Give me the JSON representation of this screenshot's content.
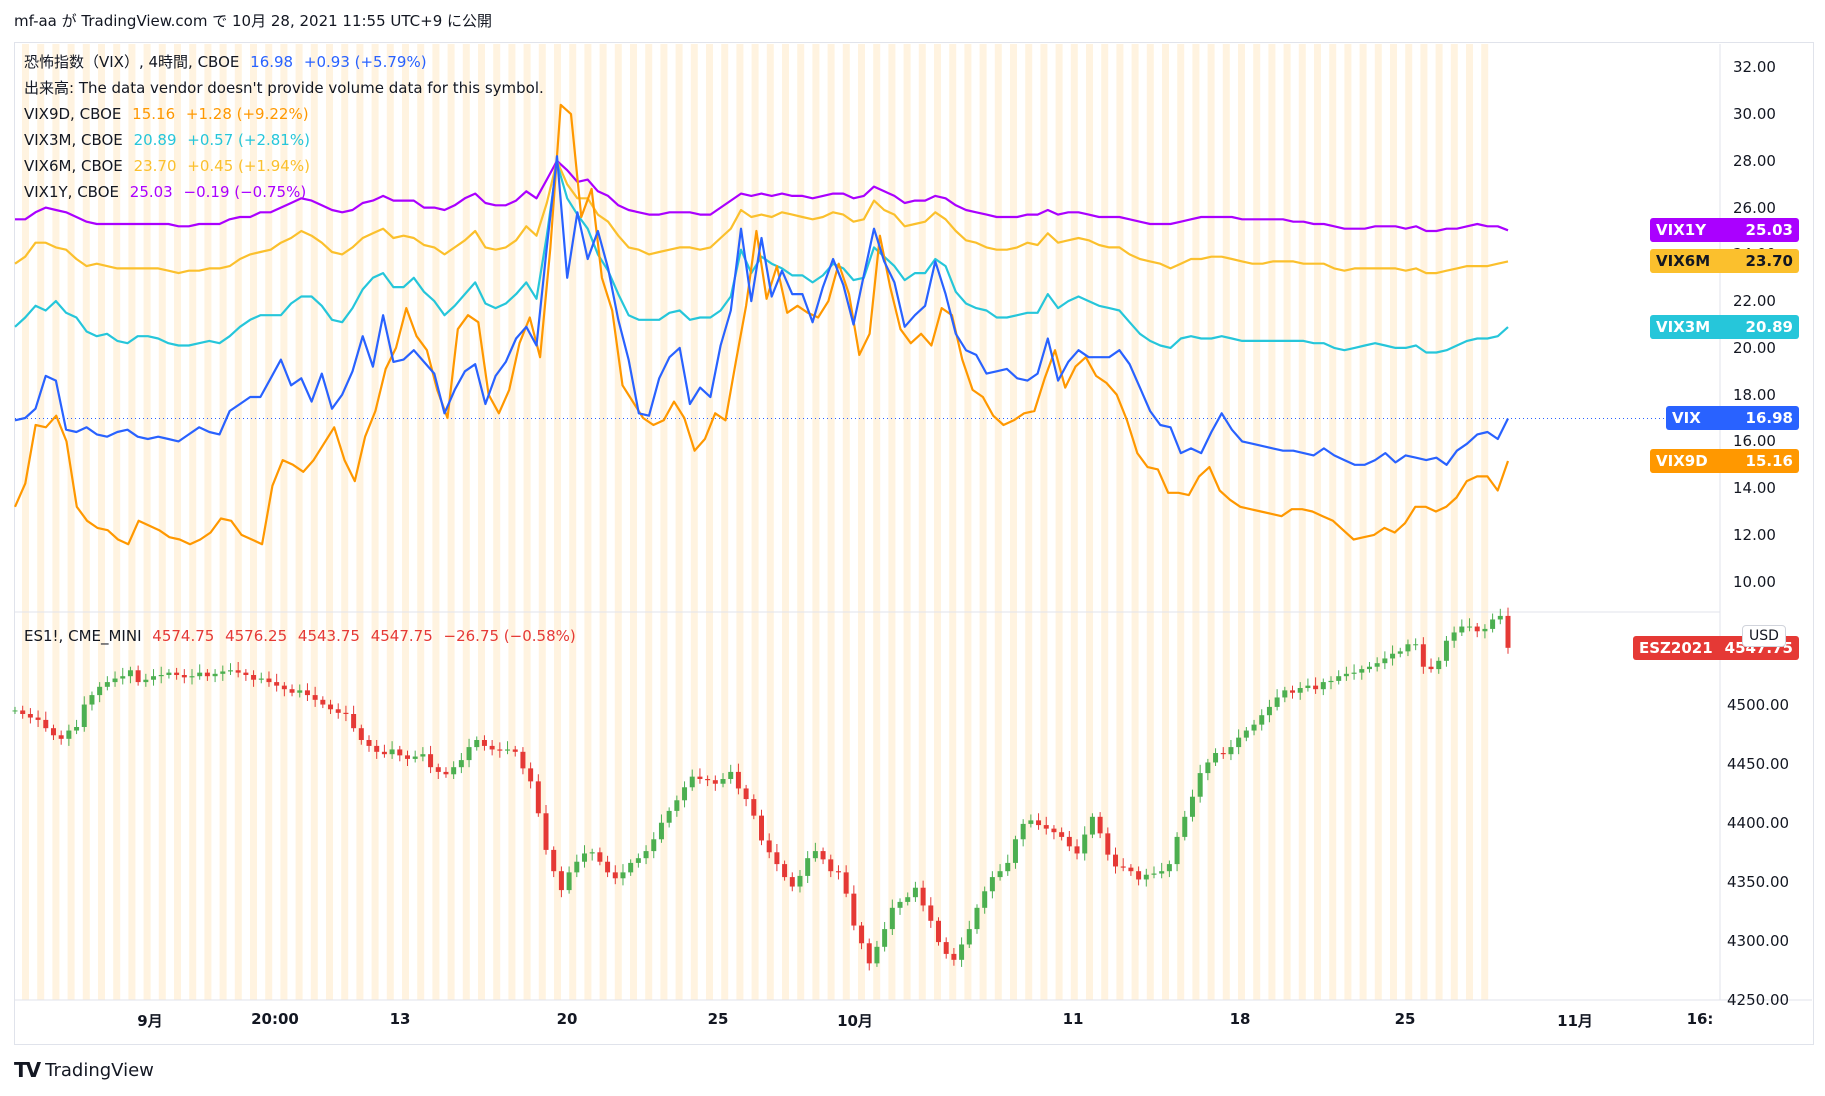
{
  "header": {
    "text": "mf-aa が TradingView.com で 10月 28, 2021 11:55 UTC+9 に公開"
  },
  "colors": {
    "vix": "#2962ff",
    "vix9d": "#ff9800",
    "vix3m": "#26c6da",
    "vix6m": "#fbc02d",
    "vix1y": "#aa00ff",
    "es1": "#e53935",
    "up": "#4caf50",
    "down": "#e53935",
    "session_shade": "#fff3e0",
    "grid": "#f0f3fa",
    "dotted": "#2962ff"
  },
  "legend_top": [
    {
      "id": "vix",
      "name": "恐怖指数（VIX）, 4時間, CBOE",
      "value": "16.98",
      "change": "+0.93 (+5.79%)"
    },
    {
      "id": "vol",
      "name": "出来高: The data vendor doesn't provide volume data for this symbol.",
      "value": "",
      "change": ""
    },
    {
      "id": "vix9d",
      "name": "VIX9D, CBOE",
      "value": "15.16",
      "change": "+1.28 (+9.22%)"
    },
    {
      "id": "vix3m",
      "name": "VIX3M, CBOE",
      "value": "20.89",
      "change": "+0.57 (+2.81%)"
    },
    {
      "id": "vix6m",
      "name": "VIX6M, CBOE",
      "value": "23.70",
      "change": "+0.45 (+1.94%)"
    },
    {
      "id": "vix1y",
      "name": "VIX1Y, CBOE",
      "value": "25.03",
      "change": "−0.19 (−0.75%)"
    }
  ],
  "legend_bottom": {
    "name": "ES1!, CME_MINI",
    "o": "4574.75",
    "h": "4576.25",
    "l": "4543.75",
    "c": "4547.75",
    "change": "−26.75 (−0.58%)"
  },
  "price_tags": [
    {
      "label": "VIX1Y",
      "value": "25.03",
      "series": "vix1y"
    },
    {
      "label": "VIX6M",
      "value": "23.70",
      "series": "vix6m"
    },
    {
      "label": "VIX3M",
      "value": "20.89",
      "series": "vix3m"
    },
    {
      "label": "VIX",
      "value": "16.98",
      "series": "vix"
    },
    {
      "label": "VIX9D",
      "value": "15.16",
      "series": "vix9d"
    },
    {
      "label": "ESZ2021",
      "value": "4547.75",
      "series": "es1"
    }
  ],
  "y_axis_top": [
    "32.00",
    "30.00",
    "28.00",
    "26.00",
    "24.00",
    "22.00",
    "20.00",
    "18.00",
    "16.00",
    "14.00",
    "12.00",
    "10.00"
  ],
  "y_axis_bottom": [
    "4",
    "4500.00",
    "4450.00",
    "4400.00",
    "4350.00",
    "4300.00",
    "4250.00"
  ],
  "currency_badge": "USD",
  "x_axis": [
    "9月",
    "20:00",
    "13",
    "20",
    "25",
    "10月",
    "11",
    "18",
    "25",
    "11月",
    "16:"
  ],
  "footer": {
    "brand": "TradingView"
  },
  "chart_data": [
    {
      "type": "line",
      "title": "",
      "ylim": [
        9,
        33
      ],
      "series": [
        {
          "name": "VIX",
          "values": [
            16.9,
            17.0,
            17.4,
            18.8,
            18.6,
            16.5,
            16.4,
            16.6,
            16.3,
            16.2,
            16.4,
            16.5,
            16.2,
            16.1,
            16.2,
            16.1,
            16.0,
            16.3,
            16.6,
            16.4,
            16.3,
            17.3,
            17.6,
            17.9,
            17.9,
            18.7,
            19.5,
            18.4,
            18.7,
            17.7,
            18.9,
            17.4,
            18.0,
            19.0,
            20.5,
            19.2,
            21.4,
            19.4,
            19.5,
            19.9,
            19.4,
            18.9,
            17.2,
            18.2,
            19.0,
            19.3,
            17.6,
            18.8,
            19.4,
            20.4,
            20.9,
            20.1,
            24.3,
            28.2,
            23.0,
            25.8,
            23.8,
            25.0,
            23.4,
            21.2,
            19.5,
            17.2,
            17.1,
            18.7,
            19.6,
            20.0,
            17.6,
            18.3,
            17.9,
            20.1,
            21.6,
            25.1,
            22.0,
            24.7,
            22.2,
            23.3,
            22.3,
            22.3,
            21.1,
            22.6,
            23.8,
            22.7,
            21.0,
            23.1,
            25.1,
            23.7,
            22.8,
            20.9,
            21.4,
            21.8,
            23.7,
            22.3,
            20.6,
            19.9,
            19.7,
            18.9,
            19.0,
            19.1,
            18.7,
            18.6,
            18.9,
            20.4,
            18.6,
            19.4,
            19.9,
            19.6,
            19.6,
            19.6,
            19.9,
            19.3,
            18.3,
            17.3,
            16.7,
            16.6,
            15.5,
            15.7,
            15.5,
            16.4,
            17.2,
            16.5,
            16.0,
            15.9,
            15.8,
            15.7,
            15.6,
            15.6,
            15.5,
            15.4,
            15.7,
            15.4,
            15.2,
            15.0,
            15.0,
            15.2,
            15.5,
            15.1,
            15.4,
            15.3,
            15.2,
            15.3,
            15.0,
            15.6,
            15.9,
            16.3,
            16.4,
            16.1,
            16.98
          ]
        },
        {
          "name": "VIX9D",
          "values": [
            13.2,
            14.2,
            16.7,
            16.6,
            17.1,
            16.0,
            13.2,
            12.6,
            12.3,
            12.2,
            11.8,
            11.6,
            12.6,
            12.4,
            12.2,
            11.9,
            11.8,
            11.6,
            11.8,
            12.1,
            12.7,
            12.6,
            12.0,
            11.8,
            11.6,
            14.1,
            15.2,
            15.0,
            14.7,
            15.2,
            15.9,
            16.6,
            15.2,
            14.3,
            16.2,
            17.3,
            19.1,
            20.0,
            21.7,
            20.5,
            19.9,
            18.2,
            17.0,
            20.8,
            21.4,
            21.1,
            18.0,
            17.2,
            18.2,
            20.2,
            21.3,
            19.6,
            24.3,
            30.4,
            30.0,
            25.6,
            26.8,
            23.0,
            21.6,
            18.4,
            17.7,
            17.0,
            16.7,
            16.9,
            17.7,
            17.0,
            15.6,
            16.1,
            17.2,
            16.9,
            19.4,
            21.8,
            25.0,
            22.1,
            23.5,
            21.5,
            21.8,
            21.5,
            21.3,
            22.0,
            23.6,
            22.3,
            19.7,
            20.6,
            24.8,
            22.6,
            20.8,
            20.2,
            20.6,
            20.1,
            21.7,
            21.4,
            19.5,
            18.2,
            17.9,
            17.1,
            16.7,
            16.9,
            17.2,
            17.3,
            18.7,
            19.9,
            18.3,
            19.2,
            19.6,
            18.8,
            18.5,
            18.0,
            16.9,
            15.5,
            14.9,
            14.8,
            13.8,
            13.8,
            13.7,
            14.5,
            14.9,
            13.9,
            13.5,
            13.2,
            13.1,
            13.0,
            12.9,
            12.8,
            13.1,
            13.1,
            13.0,
            12.8,
            12.6,
            12.2,
            11.8,
            11.9,
            12.0,
            12.3,
            12.1,
            12.5,
            13.2,
            13.2,
            13.0,
            13.2,
            13.6,
            14.3,
            14.5,
            14.5,
            13.9,
            15.16
          ]
        },
        {
          "name": "VIX3M",
          "values": [
            20.9,
            21.3,
            21.8,
            21.6,
            22.0,
            21.5,
            21.3,
            20.7,
            20.5,
            20.6,
            20.3,
            20.2,
            20.5,
            20.5,
            20.4,
            20.2,
            20.1,
            20.1,
            20.2,
            20.3,
            20.2,
            20.5,
            20.9,
            21.2,
            21.4,
            21.4,
            21.4,
            21.9,
            22.2,
            22.2,
            21.8,
            21.2,
            21.1,
            21.7,
            22.5,
            23.0,
            23.2,
            22.6,
            22.6,
            23.0,
            22.4,
            22.0,
            21.4,
            21.8,
            22.3,
            22.8,
            21.9,
            21.7,
            21.9,
            22.3,
            22.8,
            22.1,
            24.8,
            27.9,
            26.4,
            25.7,
            25.1,
            24.0,
            23.3,
            22.3,
            21.4,
            21.2,
            21.2,
            21.2,
            21.5,
            21.6,
            21.2,
            21.3,
            21.3,
            21.6,
            22.2,
            24.2,
            23.2,
            23.9,
            23.6,
            23.4,
            23.1,
            23.1,
            22.8,
            23.1,
            23.6,
            23.4,
            22.9,
            23.0,
            24.3,
            23.9,
            23.5,
            22.9,
            23.2,
            23.2,
            23.8,
            23.5,
            22.4,
            21.9,
            21.7,
            21.6,
            21.3,
            21.3,
            21.4,
            21.5,
            21.5,
            22.3,
            21.7,
            22.0,
            22.2,
            22.0,
            21.8,
            21.7,
            21.6,
            21.1,
            20.6,
            20.3,
            20.1,
            20.0,
            20.4,
            20.5,
            20.4,
            20.4,
            20.5,
            20.4,
            20.3,
            20.3,
            20.3,
            20.3,
            20.3,
            20.3,
            20.3,
            20.2,
            20.2,
            20.0,
            19.9,
            20.0,
            20.1,
            20.2,
            20.1,
            20.0,
            20.0,
            20.1,
            19.8,
            19.8,
            19.9,
            20.1,
            20.3,
            20.4,
            20.4,
            20.5,
            20.89
          ]
        },
        {
          "name": "VIX6M",
          "values": [
            23.6,
            23.9,
            24.5,
            24.5,
            24.3,
            24.2,
            23.8,
            23.5,
            23.6,
            23.5,
            23.4,
            23.4,
            23.4,
            23.4,
            23.4,
            23.3,
            23.2,
            23.3,
            23.3,
            23.4,
            23.4,
            23.5,
            23.8,
            24.0,
            24.1,
            24.2,
            24.5,
            24.7,
            25.0,
            24.8,
            24.5,
            24.1,
            24.0,
            24.3,
            24.7,
            24.9,
            25.1,
            24.7,
            24.8,
            24.7,
            24.4,
            24.3,
            24.0,
            24.3,
            24.6,
            25.0,
            24.3,
            24.2,
            24.3,
            24.6,
            25.2,
            24.8,
            26.2,
            28.0,
            27.0,
            26.4,
            26.4,
            25.7,
            25.4,
            24.8,
            24.3,
            24.2,
            24.0,
            24.1,
            24.2,
            24.3,
            24.3,
            24.2,
            24.3,
            24.7,
            25.1,
            25.9,
            25.6,
            25.7,
            25.6,
            25.8,
            25.7,
            25.6,
            25.5,
            25.6,
            25.8,
            25.7,
            25.4,
            25.5,
            26.3,
            25.9,
            25.7,
            25.2,
            25.3,
            25.4,
            25.8,
            25.5,
            25.0,
            24.6,
            24.5,
            24.3,
            24.2,
            24.2,
            24.3,
            24.5,
            24.4,
            24.9,
            24.5,
            24.6,
            24.7,
            24.6,
            24.4,
            24.3,
            24.3,
            24.0,
            23.8,
            23.7,
            23.6,
            23.4,
            23.6,
            23.8,
            23.8,
            23.9,
            23.9,
            23.8,
            23.7,
            23.6,
            23.6,
            23.7,
            23.7,
            23.7,
            23.6,
            23.6,
            23.6,
            23.4,
            23.3,
            23.4,
            23.4,
            23.4,
            23.4,
            23.4,
            23.3,
            23.4,
            23.2,
            23.2,
            23.3,
            23.4,
            23.5,
            23.5,
            23.5,
            23.6,
            23.7
          ]
        },
        {
          "name": "VIX1Y",
          "values": [
            25.5,
            25.5,
            25.8,
            26.0,
            25.9,
            25.8,
            25.6,
            25.4,
            25.3,
            25.3,
            25.3,
            25.3,
            25.3,
            25.3,
            25.3,
            25.3,
            25.2,
            25.2,
            25.3,
            25.3,
            25.3,
            25.5,
            25.6,
            25.6,
            25.8,
            25.8,
            26.0,
            26.2,
            26.4,
            26.3,
            26.1,
            25.9,
            25.8,
            25.9,
            26.2,
            26.3,
            26.5,
            26.3,
            26.3,
            26.3,
            26.0,
            26.0,
            25.9,
            26.1,
            26.4,
            26.6,
            26.2,
            26.1,
            26.1,
            26.3,
            26.7,
            26.4,
            27.2,
            28.0,
            27.6,
            27.1,
            27.2,
            26.7,
            26.5,
            26.1,
            25.9,
            25.8,
            25.7,
            25.7,
            25.8,
            25.8,
            25.8,
            25.7,
            25.7,
            26.0,
            26.3,
            26.6,
            26.5,
            26.6,
            26.5,
            26.6,
            26.5,
            26.5,
            26.4,
            26.5,
            26.6,
            26.6,
            26.4,
            26.5,
            26.9,
            26.7,
            26.5,
            26.2,
            26.3,
            26.3,
            26.5,
            26.4,
            26.1,
            25.9,
            25.8,
            25.7,
            25.6,
            25.6,
            25.6,
            25.7,
            25.7,
            25.9,
            25.7,
            25.8,
            25.8,
            25.7,
            25.6,
            25.6,
            25.6,
            25.5,
            25.4,
            25.3,
            25.3,
            25.3,
            25.4,
            25.5,
            25.6,
            25.6,
            25.6,
            25.6,
            25.5,
            25.5,
            25.5,
            25.5,
            25.5,
            25.4,
            25.4,
            25.3,
            25.3,
            25.2,
            25.1,
            25.1,
            25.1,
            25.2,
            25.2,
            25.2,
            25.1,
            25.2,
            25.0,
            25.0,
            25.1,
            25.1,
            25.2,
            25.3,
            25.2,
            25.2,
            25.03
          ]
        }
      ]
    },
    {
      "type": "candlestick",
      "title": "",
      "ylim": [
        4250,
        4580
      ],
      "series": [
        {
          "name": "ES1!",
          "values": [
            4495,
            4492,
            4489,
            4487,
            4480,
            4474,
            4471,
            4478,
            4481,
            4500,
            4508,
            4515,
            4519,
            4522,
            4524,
            4529,
            4519,
            4521,
            4524,
            4525,
            4527,
            4525,
            4523,
            4524,
            4527,
            4524,
            4526,
            4528,
            4529,
            4527,
            4525,
            4521,
            4522,
            4519,
            4516,
            4513,
            4510,
            4512,
            4508,
            4504,
            4500,
            4496,
            4493,
            4492,
            4480,
            4470,
            4465,
            4460,
            4458,
            4462,
            4457,
            4454,
            4456,
            4458,
            4447,
            4443,
            4441,
            4447,
            4453,
            4464,
            4470,
            4465,
            4462,
            4461,
            4462,
            4460,
            4446,
            4435,
            4408,
            4377,
            4359,
            4343,
            4358,
            4367,
            4374,
            4375,
            4367,
            4358,
            4353,
            4358,
            4366,
            4370,
            4376,
            4386,
            4400,
            4410,
            4419,
            4430,
            4439,
            4437,
            4436,
            4433,
            4437,
            4443,
            4429,
            4420,
            4406,
            4385,
            4375,
            4365,
            4354,
            4346,
            4355,
            4370,
            4376,
            4369,
            4359,
            4358,
            4340,
            4313,
            4298,
            4281,
            4295,
            4310,
            4328,
            4333,
            4337,
            4345,
            4330,
            4317,
            4299,
            4289,
            4284,
            4297,
            4310,
            4328,
            4342,
            4354,
            4359,
            4366,
            4386,
            4399,
            4402,
            4398,
            4395,
            4392,
            4388,
            4380,
            4374,
            4390,
            4405,
            4391,
            4373,
            4363,
            4362,
            4359,
            4352,
            4356,
            4357,
            4359,
            4365,
            4388,
            4405,
            4422,
            4442,
            4451,
            4459,
            4458,
            4464,
            4472,
            4478,
            4483,
            4491,
            4498,
            4506,
            4512,
            4510,
            4514,
            4516,
            4513,
            4519,
            4520,
            4524,
            4526,
            4527,
            4530,
            4532,
            4535,
            4539,
            4543,
            4545,
            4551,
            4551,
            4532,
            4530,
            4537,
            4554,
            4561,
            4566,
            4566,
            4562,
            4564,
            4572,
            4575,
            4548
          ]
        }
      ]
    }
  ]
}
